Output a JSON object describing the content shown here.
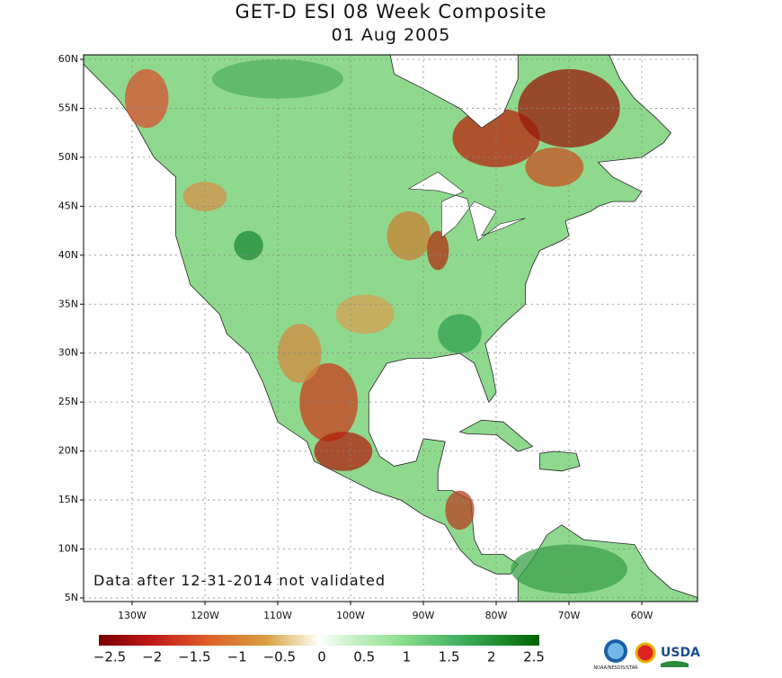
{
  "header": {
    "title": "GET-D ESI 08 Week Composite",
    "subtitle": "01 Aug 2005"
  },
  "map": {
    "lat_labels": [
      "60N",
      "55N",
      "50N",
      "45N",
      "40N",
      "35N",
      "30N",
      "25N",
      "20N",
      "15N",
      "10N",
      "5N"
    ],
    "lon_labels": [
      "130W",
      "120W",
      "110W",
      "100W",
      "90W",
      "80W",
      "70W",
      "60W"
    ],
    "note": "Data after 12-31-2014 not validated"
  },
  "colorbar": {
    "labels": [
      "−2.5",
      "−2",
      "−1.5",
      "−1",
      "−0.5",
      "0",
      "0.5",
      "1",
      "1.5",
      "2",
      "2.5"
    ]
  },
  "logos": {
    "noaa": "NOAA/NESDIS/STAR",
    "usda": "USDA"
  }
}
